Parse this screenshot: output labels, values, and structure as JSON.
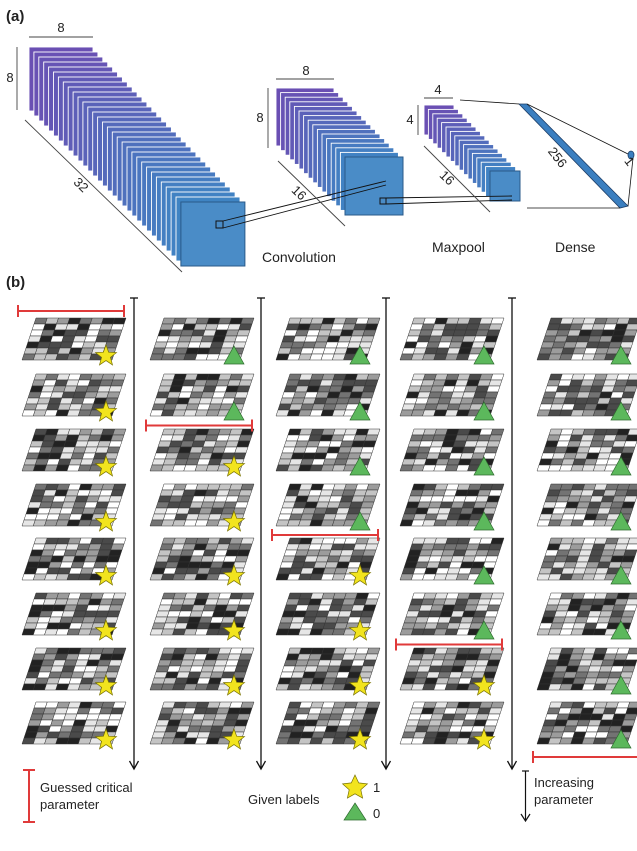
{
  "panels": {
    "a": "(a)",
    "b": "(b)"
  },
  "architecture": {
    "input_width": "8",
    "input_height": "8",
    "input_depth": "32",
    "conv_width": "8",
    "conv_height": "8",
    "conv_depth": "16",
    "pool_width": "4",
    "pool_height": "4",
    "pool_depth": "16",
    "dense_units": "256",
    "output_units": "1",
    "convolution_label": "Convolution",
    "maxpool_label": "Maxpool",
    "dense_label": "Dense"
  },
  "layer_colors": {
    "stack_top": "#6a4fb3",
    "stack_bottom": "#3e86c4",
    "face": "#4a8cc7",
    "dense": "#3b7fc0"
  },
  "runs": [
    {
      "labels": [
        "1",
        "1",
        "1",
        "1",
        "1",
        "1",
        "1",
        "1"
      ],
      "guess_position": "top"
    },
    {
      "labels": [
        "0",
        "0",
        "1",
        "1",
        "1",
        "1",
        "1",
        "1"
      ],
      "guess_position": "between-2-3"
    },
    {
      "labels": [
        "0",
        "0",
        "0",
        "0",
        "1",
        "1",
        "1",
        "1"
      ],
      "guess_position": "between-4-5"
    },
    {
      "labels": [
        "0",
        "0",
        "0",
        "0",
        "0",
        "0",
        "1",
        "1"
      ],
      "guess_position": "between-6-7"
    },
    {
      "labels": [
        "0",
        "0",
        "0",
        "0",
        "0",
        "0",
        "0",
        "0"
      ],
      "guess_position": "bottom"
    }
  ],
  "marker_colors": {
    "star": "#f2e41e",
    "triangle": "#5cb85c",
    "guess_bar": "#e03a3a"
  },
  "legend": {
    "guess_label_line1": "Guessed critical",
    "guess_label_line2": "parameter",
    "given_labels": "Given labels",
    "star_value": "1",
    "triangle_value": "0",
    "arrow_label_line1": "Increasing",
    "arrow_label_line2": "parameter"
  }
}
